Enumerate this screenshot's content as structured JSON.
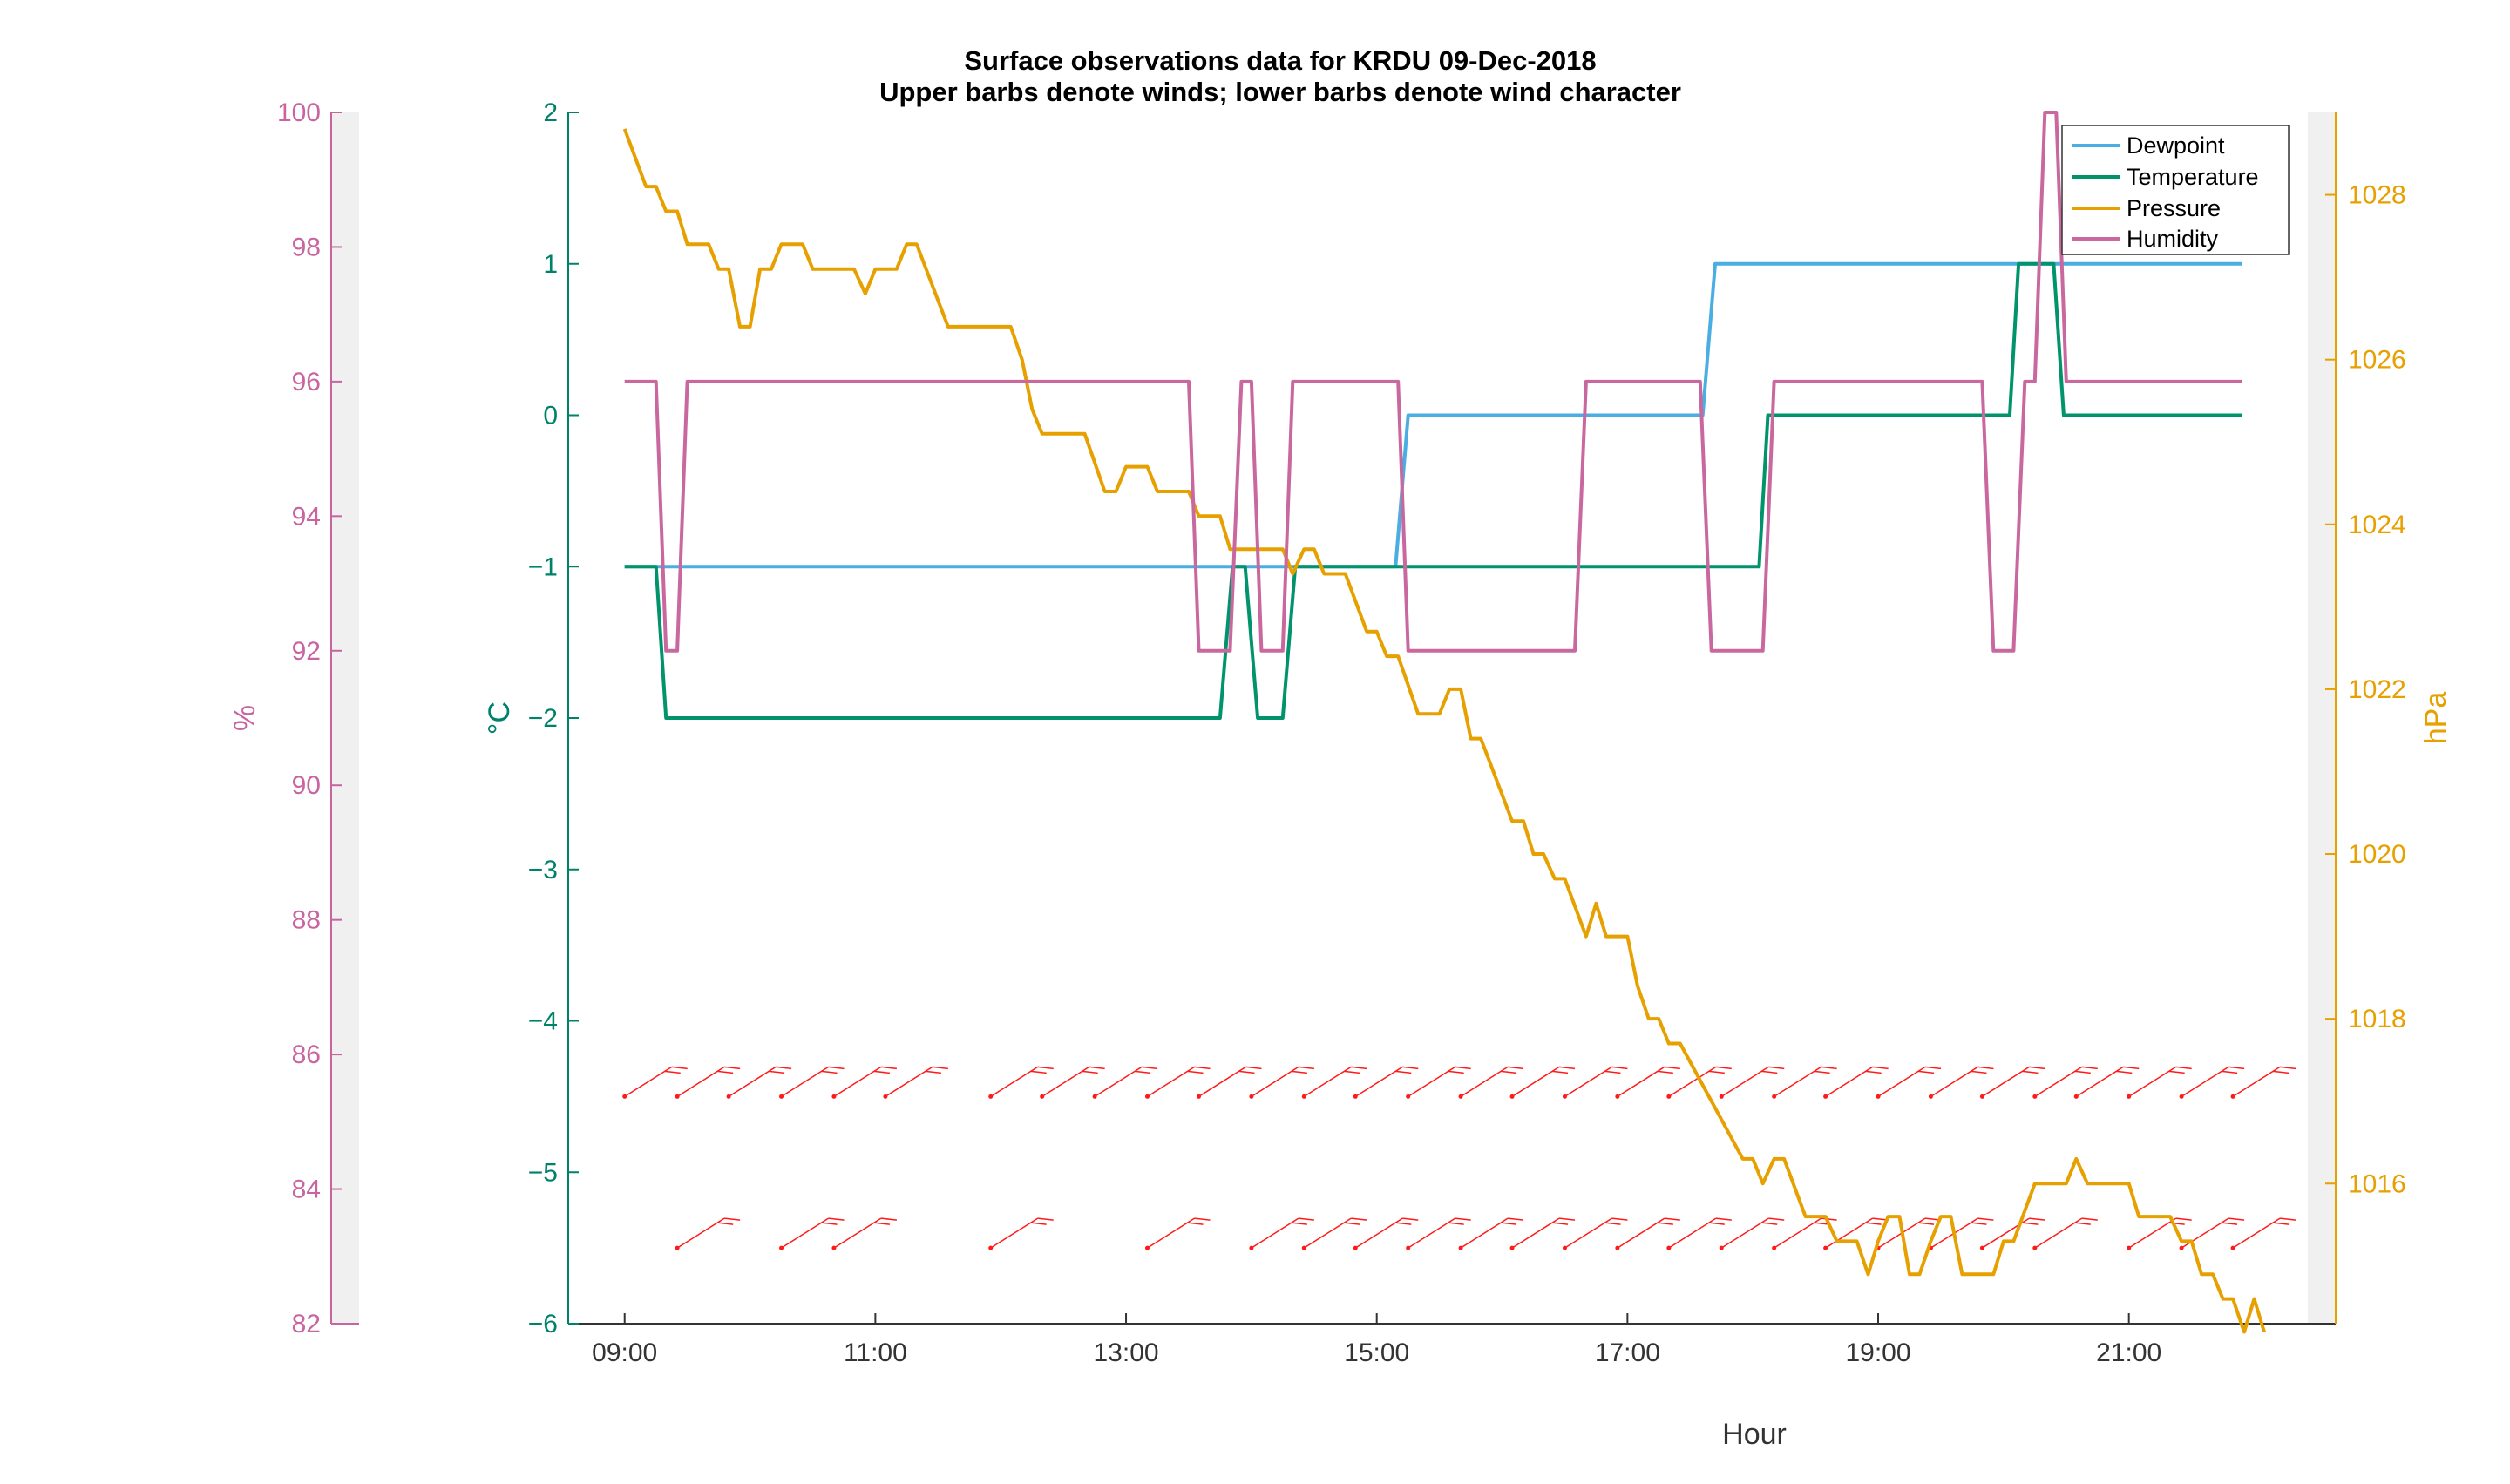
{
  "chart_data": {
    "type": "line",
    "title": "Surface observations data for KRDU 09-Dec-2018",
    "subtitle": "Upper barbs denote winds; lower barbs denote wind character",
    "xlabel": "Hour",
    "x_ticks": [
      "09:00",
      "11:00",
      "13:00",
      "15:00",
      "17:00",
      "19:00",
      "21:00"
    ],
    "xlim": [
      8.55,
      22.65
    ],
    "axes": {
      "temperature": {
        "label": "°C",
        "ylim": [
          -6,
          2
        ],
        "ticks": [
          -6,
          -5,
          -4,
          -3,
          -2,
          -1,
          0,
          1,
          2
        ],
        "color": "#00816a"
      },
      "humidity": {
        "label": "%",
        "ylim": [
          82,
          100
        ],
        "ticks": [
          82,
          84,
          86,
          88,
          90,
          92,
          94,
          96,
          98,
          100
        ],
        "color": "#c864a0"
      },
      "pressure": {
        "label": "hPa",
        "ylim": [
          1014.3,
          1029.0
        ],
        "ticks": [
          1016,
          1018,
          1020,
          1022,
          1024,
          1026,
          1028
        ],
        "color": "#e6a000"
      }
    },
    "legend_position": "top-right",
    "series": [
      {
        "name": "Dewpoint",
        "axis": "temperature",
        "color": "#4aaee2",
        "points": [
          [
            9.0,
            -1
          ],
          [
            15.15,
            -1
          ],
          [
            15.25,
            0
          ],
          [
            17.6,
            0
          ],
          [
            17.7,
            1
          ],
          [
            21.9,
            1
          ]
        ]
      },
      {
        "name": "Temperature",
        "axis": "temperature",
        "color": "#00936c",
        "points": [
          [
            9.0,
            -1
          ],
          [
            9.25,
            -1
          ],
          [
            9.33,
            -2
          ],
          [
            13.75,
            -2
          ],
          [
            13.85,
            -1
          ],
          [
            13.95,
            -1
          ],
          [
            14.05,
            -2
          ],
          [
            14.25,
            -2
          ],
          [
            14.35,
            -1
          ],
          [
            18.05,
            -1
          ],
          [
            18.12,
            0
          ],
          [
            20.05,
            0
          ],
          [
            20.12,
            1
          ],
          [
            20.4,
            1
          ],
          [
            20.48,
            0
          ],
          [
            21.9,
            0
          ]
        ]
      },
      {
        "name": "Pressure",
        "axis": "pressure",
        "color": "#e6a000",
        "points": [
          [
            9.0,
            1028.8
          ],
          [
            9.17,
            1028.1
          ],
          [
            9.25,
            1028.1
          ],
          [
            9.33,
            1027.8
          ],
          [
            9.42,
            1027.8
          ],
          [
            9.5,
            1027.4
          ],
          [
            9.67,
            1027.4
          ],
          [
            9.75,
            1027.1
          ],
          [
            9.83,
            1027.1
          ],
          [
            9.92,
            1026.4
          ],
          [
            10.0,
            1026.4
          ],
          [
            10.08,
            1027.1
          ],
          [
            10.17,
            1027.1
          ],
          [
            10.25,
            1027.4
          ],
          [
            10.42,
            1027.4
          ],
          [
            10.5,
            1027.1
          ],
          [
            10.83,
            1027.1
          ],
          [
            10.92,
            1026.8
          ],
          [
            11.0,
            1027.1
          ],
          [
            11.17,
            1027.1
          ],
          [
            11.25,
            1027.4
          ],
          [
            11.33,
            1027.4
          ],
          [
            11.58,
            1026.4
          ],
          [
            12.08,
            1026.4
          ],
          [
            12.17,
            1026.0
          ],
          [
            12.25,
            1025.4
          ],
          [
            12.33,
            1025.1
          ],
          [
            12.67,
            1025.1
          ],
          [
            12.83,
            1024.4
          ],
          [
            12.92,
            1024.4
          ],
          [
            13.0,
            1024.7
          ],
          [
            13.17,
            1024.7
          ],
          [
            13.25,
            1024.4
          ],
          [
            13.5,
            1024.4
          ],
          [
            13.58,
            1024.1
          ],
          [
            13.75,
            1024.1
          ],
          [
            13.83,
            1023.7
          ],
          [
            14.25,
            1023.7
          ],
          [
            14.33,
            1023.4
          ],
          [
            14.42,
            1023.7
          ],
          [
            14.5,
            1023.7
          ],
          [
            14.58,
            1023.4
          ],
          [
            14.75,
            1023.4
          ],
          [
            14.92,
            1022.7
          ],
          [
            15.0,
            1022.7
          ],
          [
            15.08,
            1022.4
          ],
          [
            15.17,
            1022.4
          ],
          [
            15.33,
            1021.7
          ],
          [
            15.5,
            1021.7
          ],
          [
            15.58,
            1022.0
          ],
          [
            15.67,
            1022.0
          ],
          [
            15.75,
            1021.4
          ],
          [
            15.83,
            1021.4
          ],
          [
            16.08,
            1020.4
          ],
          [
            16.17,
            1020.4
          ],
          [
            16.25,
            1020.0
          ],
          [
            16.33,
            1020.0
          ],
          [
            16.42,
            1019.7
          ],
          [
            16.5,
            1019.7
          ],
          [
            16.67,
            1019.0
          ],
          [
            16.75,
            1019.4
          ],
          [
            16.83,
            1019.0
          ],
          [
            17.0,
            1019.0
          ],
          [
            17.08,
            1018.4
          ],
          [
            17.17,
            1018.0
          ],
          [
            17.25,
            1018.0
          ],
          [
            17.33,
            1017.7
          ],
          [
            17.42,
            1017.7
          ],
          [
            17.92,
            1016.3
          ],
          [
            18.0,
            1016.3
          ],
          [
            18.08,
            1016.0
          ],
          [
            18.17,
            1016.3
          ],
          [
            18.25,
            1016.3
          ],
          [
            18.42,
            1015.6
          ],
          [
            18.58,
            1015.6
          ],
          [
            18.67,
            1015.3
          ],
          [
            18.83,
            1015.3
          ],
          [
            18.92,
            1014.9
          ],
          [
            19.0,
            1015.3
          ],
          [
            19.08,
            1015.6
          ],
          [
            19.17,
            1015.6
          ],
          [
            19.25,
            1014.9
          ],
          [
            19.33,
            1014.9
          ],
          [
            19.42,
            1015.3
          ],
          [
            19.5,
            1015.6
          ],
          [
            19.58,
            1015.6
          ],
          [
            19.67,
            1014.9
          ],
          [
            19.92,
            1014.9
          ],
          [
            20.0,
            1015.3
          ],
          [
            20.08,
            1015.3
          ],
          [
            20.25,
            1016.0
          ],
          [
            20.5,
            1016.0
          ],
          [
            20.58,
            1016.3
          ],
          [
            20.67,
            1016.0
          ],
          [
            21.0,
            1016.0
          ],
          [
            21.08,
            1015.6
          ],
          [
            21.33,
            1015.6
          ],
          [
            21.42,
            1015.3
          ],
          [
            21.5,
            1015.3
          ],
          [
            21.58,
            1014.9
          ],
          [
            21.67,
            1014.9
          ],
          [
            21.75,
            1014.6
          ],
          [
            21.83,
            1014.6
          ],
          [
            21.92,
            1014.2
          ],
          [
            22.0,
            1014.6
          ],
          [
            22.08,
            1014.2
          ]
        ]
      },
      {
        "name": "Humidity",
        "axis": "humidity",
        "color": "#c8689e",
        "points": [
          [
            9.0,
            96
          ],
          [
            9.25,
            96
          ],
          [
            9.33,
            92
          ],
          [
            9.42,
            92
          ],
          [
            9.5,
            96
          ],
          [
            13.5,
            96
          ],
          [
            13.58,
            92
          ],
          [
            13.83,
            92
          ],
          [
            13.92,
            96
          ],
          [
            14.0,
            96
          ],
          [
            14.08,
            92
          ],
          [
            14.25,
            92
          ],
          [
            14.33,
            96
          ],
          [
            15.17,
            96
          ],
          [
            15.25,
            92
          ],
          [
            16.58,
            92
          ],
          [
            16.67,
            96
          ],
          [
            17.58,
            96
          ],
          [
            17.67,
            92
          ],
          [
            18.08,
            92
          ],
          [
            18.17,
            96
          ],
          [
            19.83,
            96
          ],
          [
            19.92,
            92
          ],
          [
            20.08,
            92
          ],
          [
            20.17,
            96
          ],
          [
            20.25,
            96
          ],
          [
            20.33,
            100
          ],
          [
            20.42,
            100
          ],
          [
            20.5,
            96
          ],
          [
            21.9,
            96
          ]
        ]
      }
    ],
    "wind_barbs": {
      "color": "#ff1a1a",
      "upper_y": -4.5,
      "lower_y": -5.5,
      "upper_x": [
        9.0,
        9.42,
        9.83,
        10.25,
        10.67,
        11.08,
        11.92,
        12.33,
        12.75,
        13.17,
        13.58,
        14.0,
        14.42,
        14.83,
        15.25,
        15.67,
        16.08,
        16.5,
        16.92,
        17.33,
        17.75,
        18.17,
        18.58,
        19.0,
        19.42,
        19.83,
        20.25,
        20.58,
        21.0,
        21.42,
        21.83
      ],
      "lower_x": [
        9.42,
        10.25,
        10.67,
        11.92,
        13.17,
        14.0,
        14.42,
        14.83,
        15.25,
        15.67,
        16.08,
        16.5,
        16.92,
        17.33,
        17.75,
        18.17,
        18.58,
        19.0,
        19.42,
        19.83,
        20.25,
        21.0,
        21.42,
        21.83
      ]
    }
  }
}
